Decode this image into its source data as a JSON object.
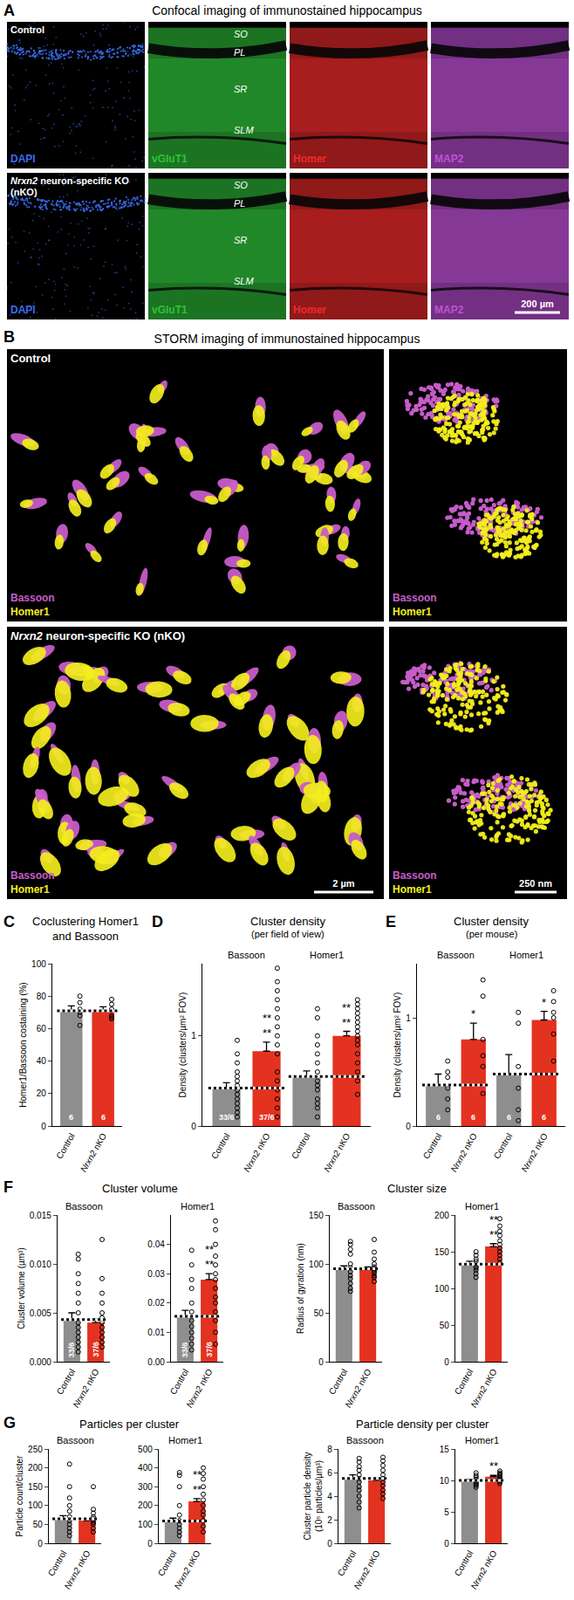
{
  "panel_a": {
    "label": "A",
    "title": "Confocal imaging of immunostained hippocampus",
    "rows": [
      "Control",
      "Nrxn2 neuron-specific KO (nKO)"
    ],
    "channels": [
      {
        "name": "DAPI",
        "color": "#3a6df0"
      },
      {
        "name": "vGluT1",
        "color": "#2fc23a"
      },
      {
        "name": "Homer",
        "color": "#f02a2a"
      },
      {
        "name": "MAP2",
        "color": "#c050d8"
      }
    ],
    "layers": [
      "SO",
      "PL",
      "SR",
      "SLM"
    ],
    "scale_bar": "200 µm"
  },
  "panel_b": {
    "label": "B",
    "title": "STORM imaging of immunostained hippocampus",
    "rows": [
      "Control",
      "Nrxn2 neuron-specific KO (nKO)"
    ],
    "channels": [
      {
        "name": "Bassoon",
        "color": "#c75cc9"
      },
      {
        "name": "Homer1",
        "color": "#f3ee1c"
      }
    ],
    "scale_bars": [
      "2 µm",
      "250 nm"
    ]
  },
  "chart_data": [
    {
      "label": "C",
      "title": "Coclustering Homer1\nand Bassoon",
      "grid": false,
      "subplots": [
        {
          "type": "bar",
          "ylabel": "Homer1/Bassoon costaining (%)",
          "ylim": [
            0,
            100
          ],
          "yticks": [
            0,
            20,
            40,
            60,
            80,
            100
          ],
          "categories": [
            "Control",
            "Nrxn2 nKO"
          ],
          "colors": [
            "#8e8e8e",
            "#e3321f"
          ],
          "values": [
            71,
            71
          ],
          "errors": [
            3,
            2.5
          ],
          "points": [
            [
              80,
              76,
              72,
              70,
              68,
              62
            ],
            [
              78,
              75,
              72,
              68,
              66,
              67
            ]
          ],
          "marker": "circle-open",
          "n_labels": [
            "6",
            "6"
          ]
        }
      ]
    },
    {
      "label": "D",
      "title": "Cluster density",
      "subtitle": "(per field of view)",
      "grid": false,
      "subplots": [
        {
          "type": "bar",
          "ylabel": "Density (clusters/µm² FOV)",
          "ylim": [
            0,
            1.8
          ],
          "yticks": [
            0,
            1
          ],
          "groups": [
            "Bassoon",
            "Homer1"
          ],
          "categories": [
            "Control",
            "Nrxn2 nKO",
            "Control",
            "Nrxn2 nKO"
          ],
          "colors": [
            "#8e8e8e",
            "#e3321f",
            "#8e8e8e",
            "#e3321f"
          ],
          "values": [
            0.42,
            0.83,
            0.55,
            1.0
          ],
          "errors": [
            0.06,
            0.1,
            0.06,
            0.05
          ],
          "points": [
            [
              0.95,
              0.8,
              0.7,
              0.6,
              0.55,
              0.5,
              0.45,
              0.4,
              0.35,
              0.3,
              0.25,
              0.2,
              0.15,
              0.1
            ],
            [
              1.75,
              1.6,
              1.5,
              1.4,
              1.3,
              1.2,
              1.1,
              1.0,
              0.9,
              0.8,
              0.6,
              0.5,
              0.4,
              0.3,
              0.2,
              0.1
            ],
            [
              1.3,
              1.2,
              1.0,
              0.9,
              0.8,
              0.7,
              0.6,
              0.5,
              0.45,
              0.4,
              0.3,
              0.25,
              0.2,
              0.1
            ],
            [
              1.4,
              1.35,
              1.3,
              1.25,
              1.2,
              1.15,
              1.1,
              1.05,
              1.0,
              0.95,
              0.9,
              0.8,
              0.7,
              0.6,
              0.5,
              0.35
            ]
          ],
          "marker": "circle-open",
          "n_labels": [
            "33/6",
            "37/6",
            null,
            null
          ],
          "significance": [
            null,
            "**\n**",
            null,
            "**\n**"
          ]
        }
      ]
    },
    {
      "label": "E",
      "title": "Cluster density",
      "subtitle": "(per mouse)",
      "grid": false,
      "subplots": [
        {
          "type": "bar",
          "ylabel": "Density (clusters/µm² FOV)",
          "ylim": [
            0,
            1.5
          ],
          "yticks": [
            0,
            1
          ],
          "groups": [
            "Bassoon",
            "Homer1"
          ],
          "categories": [
            "Control",
            "Nrxn2 nKO",
            "Control",
            "Nrxn2 nKO"
          ],
          "colors": [
            "#8e8e8e",
            "#e3321f",
            "#8e8e8e",
            "#e3321f"
          ],
          "values": [
            0.38,
            0.8,
            0.48,
            0.98
          ],
          "errors": [
            0.1,
            0.15,
            0.18,
            0.08
          ],
          "points": [
            [
              0.6,
              0.5,
              0.45,
              0.35,
              0.25,
              0.15
            ],
            [
              1.35,
              1.2,
              0.8,
              0.65,
              0.55,
              0.3
            ],
            [
              1.05,
              0.95,
              0.55,
              0.35,
              0.15,
              0.05
            ],
            [
              1.25,
              1.15,
              1.05,
              1.0,
              0.85,
              0.6
            ]
          ],
          "marker": "circle-open",
          "n_labels": [
            "6",
            "6",
            "6",
            "6"
          ],
          "significance": [
            null,
            "*",
            null,
            "*"
          ]
        }
      ]
    },
    {
      "label": "F",
      "title": "Cluster volume",
      "grid": false,
      "subplots": [
        {
          "type": "bar",
          "title": "Bassoon",
          "ylabel": "Cluster volume (µm³)",
          "ylim": [
            0,
            0.015
          ],
          "yticks": [
            {
              "value": 0,
              "label": "0.000"
            },
            0.005,
            {
              "value": 0.01,
              "label": "0.010"
            },
            0.015
          ],
          "categories": [
            "Control",
            "Nrxn2 nKO"
          ],
          "colors": [
            "#8e8e8e",
            "#e3321f"
          ],
          "values": [
            0.0043,
            0.004
          ],
          "errors": [
            0.0007,
            0.0004
          ],
          "points": [
            [
              0.011,
              0.0105,
              0.009,
              0.008,
              0.007,
              0.006,
              0.005,
              0.004,
              0.0035,
              0.003,
              0.0025,
              0.002,
              0.0015,
              0.001
            ],
            [
              0.0125,
              0.0085,
              0.007,
              0.006,
              0.005,
              0.0045,
              0.004,
              0.0035,
              0.003,
              0.0025,
              0.002,
              0.0015
            ]
          ],
          "marker": "circle-open",
          "n_labels": [
            "33/6",
            "37/6"
          ]
        },
        {
          "type": "bar",
          "title": "Homer1",
          "ylim": [
            0,
            0.05
          ],
          "yticks": [
            {
              "value": 0,
              "label": "0.00"
            },
            0.01,
            0.02,
            0.03,
            0.04
          ],
          "categories": [
            "Control",
            "Nrxn2 nKO"
          ],
          "colors": [
            "#8e8e8e",
            "#e3321f"
          ],
          "values": [
            0.0155,
            0.028
          ],
          "errors": [
            0.002,
            0.002
          ],
          "points": [
            [
              0.038,
              0.033,
              0.028,
              0.025,
              0.02,
              0.017,
              0.014,
              0.012,
              0.01,
              0.008,
              0.006,
              0.004
            ],
            [
              0.048,
              0.045,
              0.04,
              0.036,
              0.033,
              0.03,
              0.028,
              0.025,
              0.022,
              0.02,
              0.017,
              0.014,
              0.01,
              0.006
            ]
          ],
          "marker": "circle-open",
          "n_labels": [
            "33/6",
            "37/6"
          ],
          "significance": [
            null,
            "**\n**"
          ]
        }
      ]
    },
    {
      "title": "Cluster size",
      "grid": false,
      "subplots": [
        {
          "type": "bar",
          "title": "Bassoon",
          "ylabel": "Radius of gyration (nm)",
          "ylim": [
            0,
            150
          ],
          "yticks": [
            0,
            50,
            100,
            150
          ],
          "categories": [
            "Control",
            "Nrxn2 nKO"
          ],
          "colors": [
            "#8e8e8e",
            "#e3321f"
          ],
          "values": [
            95,
            95
          ],
          "errors": [
            3,
            2
          ],
          "points": [
            [
              123,
              120,
              115,
              110,
              100,
              96,
              92,
              88,
              85,
              80,
              75,
              72
            ],
            [
              125,
              112,
              105,
              100,
              97,
              95,
              93,
              91,
              88,
              86,
              82
            ]
          ],
          "marker": "circle-open"
        },
        {
          "type": "bar",
          "title": "Homer1",
          "ylim": [
            0,
            200
          ],
          "yticks": [
            0,
            50,
            100,
            150,
            200
          ],
          "categories": [
            "Control",
            "Nrxn2 nKO"
          ],
          "colors": [
            "#8e8e8e",
            "#e3321f"
          ],
          "values": [
            133,
            157
          ],
          "errors": [
            4,
            4
          ],
          "points": [
            [
              150,
              145,
              140,
              137,
              133,
              130,
              128,
              125,
              120,
              115
            ],
            [
              195,
              185,
              178,
              172,
              165,
              160,
              155,
              150,
              145,
              140,
              135
            ]
          ],
          "marker": "circle-open",
          "significance": [
            null,
            "**\n**"
          ]
        }
      ]
    },
    {
      "label": "G",
      "title": "Particles per cluster",
      "grid": false,
      "subplots": [
        {
          "type": "bar",
          "title": "Bassoon",
          "ylabel": "Particle count/cluster",
          "ylim": [
            0,
            250
          ],
          "yticks": [
            0,
            50,
            100,
            150,
            200,
            250
          ],
          "categories": [
            "Control",
            "Nrxn2 nKO"
          ],
          "colors": [
            "#8e8e8e",
            "#e3321f"
          ],
          "values": [
            65,
            60
          ],
          "errors": [
            8,
            5
          ],
          "points": [
            [
              210,
              150,
              120,
              100,
              85,
              70,
              60,
              50,
              40,
              30,
              20
            ],
            [
              150,
              90,
              80,
              70,
              65,
              60,
              55,
              50,
              40,
              30
            ]
          ],
          "marker": "circle-open"
        },
        {
          "type": "bar",
          "title": "Homer1",
          "ylim": [
            0,
            500
          ],
          "yticks": [
            0,
            100,
            200,
            300,
            400,
            500
          ],
          "categories": [
            "Control",
            "Nrxn2 nKO"
          ],
          "colors": [
            "#8e8e8e",
            "#e3321f"
          ],
          "values": [
            118,
            222
          ],
          "errors": [
            15,
            15
          ],
          "points": [
            [
              375,
              360,
              300,
              200,
              150,
              120,
              100,
              80,
              60,
              40
            ],
            [
              400,
              370,
              340,
              300,
              260,
              230,
              200,
              170,
              150,
              120,
              90,
              60
            ]
          ],
          "marker": "circle-open",
          "significance": [
            null,
            "**\n**"
          ]
        }
      ]
    },
    {
      "title": "Particle density per cluster",
      "grid": false,
      "subplots": [
        {
          "type": "bar",
          "title": "Bassoon",
          "ylabel": "Cluster particle density\n(10⁵ particles/µm³)",
          "ylim": [
            0,
            8
          ],
          "yticks": [
            0,
            2,
            4,
            6,
            8
          ],
          "categories": [
            "Control",
            "Nrxn2 nKO"
          ],
          "colors": [
            "#8e8e8e",
            "#e3321f"
          ],
          "values": [
            5.5,
            5.35
          ],
          "errors": [
            0.3,
            0.2
          ],
          "points": [
            [
              7.2,
              6.9,
              6.5,
              6.2,
              5.8,
              5.5,
              5.2,
              4.8,
              4.5,
              4.0,
              3.5,
              3.0
            ],
            [
              7.3,
              7.0,
              6.6,
              6.2,
              5.8,
              5.5,
              5.2,
              4.9,
              4.5,
              4.2,
              3.8
            ]
          ],
          "marker": "circle-open"
        },
        {
          "type": "bar",
          "title": "Homer1",
          "ylim": [
            0,
            15
          ],
          "yticks": [
            0,
            5,
            10,
            15
          ],
          "categories": [
            "Control",
            "Nrxn2 nKO"
          ],
          "colors": [
            "#8e8e8e",
            "#e3321f"
          ],
          "values": [
            10.0,
            10.6
          ],
          "errors": [
            0.2,
            0.2
          ],
          "points": [
            [
              11.2,
              10.8,
              10.5,
              10.2,
              10,
              9.8,
              9.6,
              9.4,
              9.2,
              8.9
            ],
            [
              11.5,
              11.2,
              11,
              10.8,
              10.6,
              10.4,
              10.2,
              10,
              9.8,
              9.5
            ]
          ],
          "marker": "circle-open",
          "significance": [
            null,
            "**"
          ]
        }
      ]
    }
  ]
}
